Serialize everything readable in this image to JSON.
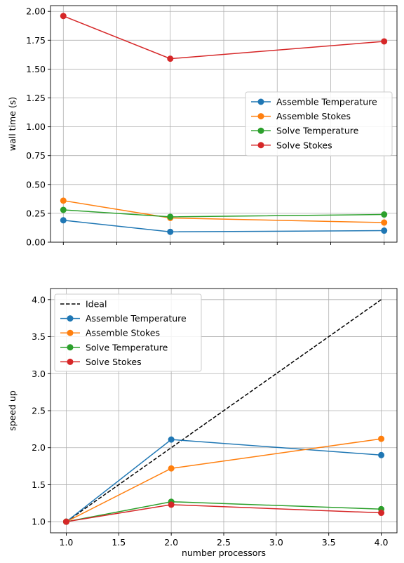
{
  "chart_data": [
    {
      "type": "line",
      "ylabel": "wall time (s)",
      "xlabel": "",
      "xlim": [
        0.88,
        4.12
      ],
      "ylim": [
        0.0,
        2.05
      ],
      "x": [
        1,
        2,
        4
      ],
      "xticks": [
        1.0,
        1.5,
        2.0,
        2.5,
        3.0,
        3.5,
        4.0
      ],
      "yticks": [
        0.0,
        0.25,
        0.5,
        0.75,
        1.0,
        1.25,
        1.5,
        1.75,
        2.0
      ],
      "ytick_labels": [
        "0.00",
        "0.25",
        "0.50",
        "0.75",
        "1.00",
        "1.25",
        "1.50",
        "1.75",
        "2.00"
      ],
      "grid": true,
      "legend_position": "center-right",
      "series": [
        {
          "name": "Assemble Temperature",
          "color": "#1f77b4",
          "values": [
            0.19,
            0.09,
            0.1
          ]
        },
        {
          "name": "Assemble Stokes",
          "color": "#ff7f0e",
          "values": [
            0.36,
            0.21,
            0.17
          ]
        },
        {
          "name": "Solve Temperature",
          "color": "#2ca02c",
          "values": [
            0.28,
            0.22,
            0.24
          ]
        },
        {
          "name": "Solve Stokes",
          "color": "#d62728",
          "values": [
            1.96,
            1.59,
            1.74
          ]
        }
      ]
    },
    {
      "type": "line",
      "ylabel": "speed up",
      "xlabel": "number processors",
      "xlim": [
        0.85,
        4.15
      ],
      "ylim": [
        0.85,
        4.15
      ],
      "x": [
        1,
        2,
        4
      ],
      "xticks": [
        1.0,
        1.5,
        2.0,
        2.5,
        3.0,
        3.5,
        4.0
      ],
      "xtick_labels": [
        "1.0",
        "1.5",
        "2.0",
        "2.5",
        "3.0",
        "3.5",
        "4.0"
      ],
      "yticks": [
        1.0,
        1.5,
        2.0,
        2.5,
        3.0,
        3.5,
        4.0
      ],
      "ytick_labels": [
        "1.0",
        "1.5",
        "2.0",
        "2.5",
        "3.0",
        "3.5",
        "4.0"
      ],
      "grid": true,
      "legend_position": "upper-left",
      "ideal": {
        "name": "Ideal",
        "color": "#000000",
        "x": [
          1,
          4
        ],
        "values": [
          1,
          4
        ]
      },
      "series": [
        {
          "name": "Assemble Temperature",
          "color": "#1f77b4",
          "values": [
            1.0,
            2.11,
            1.9
          ]
        },
        {
          "name": "Assemble Stokes",
          "color": "#ff7f0e",
          "values": [
            1.0,
            1.72,
            2.12
          ]
        },
        {
          "name": "Solve Temperature",
          "color": "#2ca02c",
          "values": [
            1.0,
            1.27,
            1.17
          ]
        },
        {
          "name": "Solve Stokes",
          "color": "#d62728",
          "values": [
            1.0,
            1.23,
            1.12
          ]
        }
      ]
    }
  ]
}
